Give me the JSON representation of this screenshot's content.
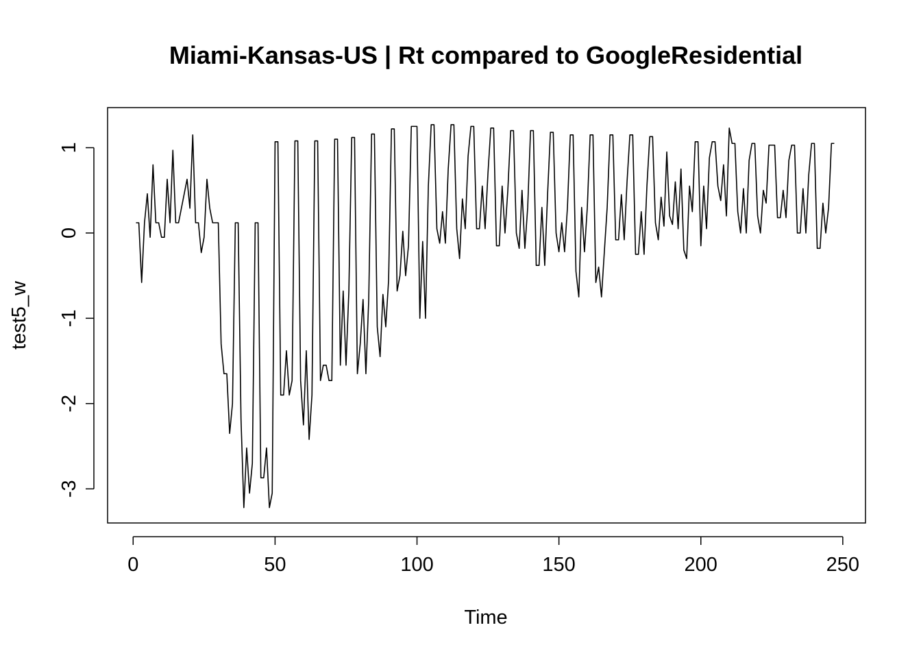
{
  "chart_data": {
    "type": "line",
    "title": "Miami-Kansas-US | Rt compared to GoogleResidential",
    "xlabel": "Time",
    "ylabel": "test5_w",
    "xlim": [
      -9,
      258
    ],
    "ylim": [
      -3.4,
      1.47
    ],
    "xticks": [
      0,
      50,
      100,
      150,
      200,
      250
    ],
    "yticks": [
      -3,
      -2,
      -1,
      0,
      1
    ],
    "series": [
      {
        "values": [
          0.12,
          0.12,
          -0.58,
          0.12,
          0.46,
          -0.05,
          0.8,
          0.12,
          0.12,
          -0.05,
          -0.05,
          0.63,
          0.12,
          0.97,
          0.12,
          0.12,
          0.29,
          0.46,
          0.63,
          0.29,
          1.15,
          0.12,
          0.12,
          -0.23,
          -0.05,
          0.63,
          0.29,
          0.12,
          0.12,
          0.12,
          -1.3,
          -1.65,
          -1.65,
          -2.35,
          -2.0,
          0.12,
          0.12,
          -2.18,
          -3.22,
          -2.52,
          -3.05,
          -2.7,
          0.12,
          0.12,
          -2.87,
          -2.87,
          -2.52,
          -3.22,
          -3.05,
          1.07,
          1.07,
          -1.9,
          -1.9,
          -1.38,
          -1.9,
          -1.73,
          1.08,
          1.08,
          -1.73,
          -2.25,
          -1.38,
          -2.42,
          -1.9,
          1.08,
          1.08,
          -1.73,
          -1.55,
          -1.55,
          -1.73,
          -1.73,
          1.1,
          1.1,
          -1.55,
          -0.68,
          -1.55,
          -0.68,
          1.12,
          1.12,
          -1.65,
          -1.3,
          -0.78,
          -1.65,
          -0.78,
          1.16,
          1.16,
          -1.1,
          -1.45,
          -0.72,
          -1.1,
          -0.55,
          1.22,
          1.22,
          -0.68,
          -0.5,
          0.02,
          -0.5,
          -0.15,
          1.25,
          1.25,
          1.25,
          -1.0,
          -0.1,
          -1.0,
          0.55,
          1.27,
          1.27,
          0.05,
          -0.12,
          0.25,
          -0.12,
          0.75,
          1.27,
          1.27,
          0.05,
          -0.3,
          0.4,
          0.05,
          0.9,
          1.25,
          1.25,
          0.05,
          0.05,
          0.55,
          0.05,
          0.7,
          1.23,
          1.23,
          -0.15,
          -0.15,
          0.55,
          0.0,
          0.5,
          1.2,
          1.2,
          0.0,
          -0.18,
          0.5,
          -0.18,
          0.3,
          1.2,
          1.2,
          -0.38,
          -0.38,
          0.3,
          -0.38,
          0.45,
          1.18,
          1.18,
          0.0,
          -0.22,
          0.12,
          -0.22,
          0.3,
          1.15,
          1.15,
          -0.45,
          -0.75,
          0.3,
          -0.22,
          0.3,
          1.15,
          1.15,
          -0.58,
          -0.4,
          -0.75,
          -0.22,
          0.3,
          1.15,
          1.15,
          -0.08,
          -0.08,
          0.45,
          -0.08,
          0.6,
          1.15,
          1.15,
          -0.25,
          -0.25,
          0.25,
          -0.25,
          0.55,
          1.13,
          1.13,
          0.12,
          -0.08,
          0.42,
          0.08,
          0.95,
          0.2,
          0.1,
          0.6,
          0.05,
          0.75,
          -0.2,
          -0.3,
          0.55,
          0.25,
          1.07,
          1.07,
          -0.15,
          0.55,
          0.05,
          0.88,
          1.07,
          1.07,
          0.55,
          0.38,
          0.8,
          0.2,
          1.23,
          1.05,
          1.05,
          0.25,
          0.0,
          0.52,
          0.0,
          0.85,
          1.05,
          1.05,
          0.2,
          0.0,
          0.5,
          0.35,
          1.03,
          1.03,
          1.03,
          0.18,
          0.18,
          0.5,
          0.18,
          0.85,
          1.03,
          1.03,
          0.0,
          0.0,
          0.52,
          0.0,
          0.68,
          1.05,
          1.05,
          -0.18,
          -0.18,
          0.35,
          0.0,
          0.3,
          1.05,
          1.05
        ]
      }
    ],
    "x_start": 1,
    "grid": false,
    "legend": "none"
  }
}
